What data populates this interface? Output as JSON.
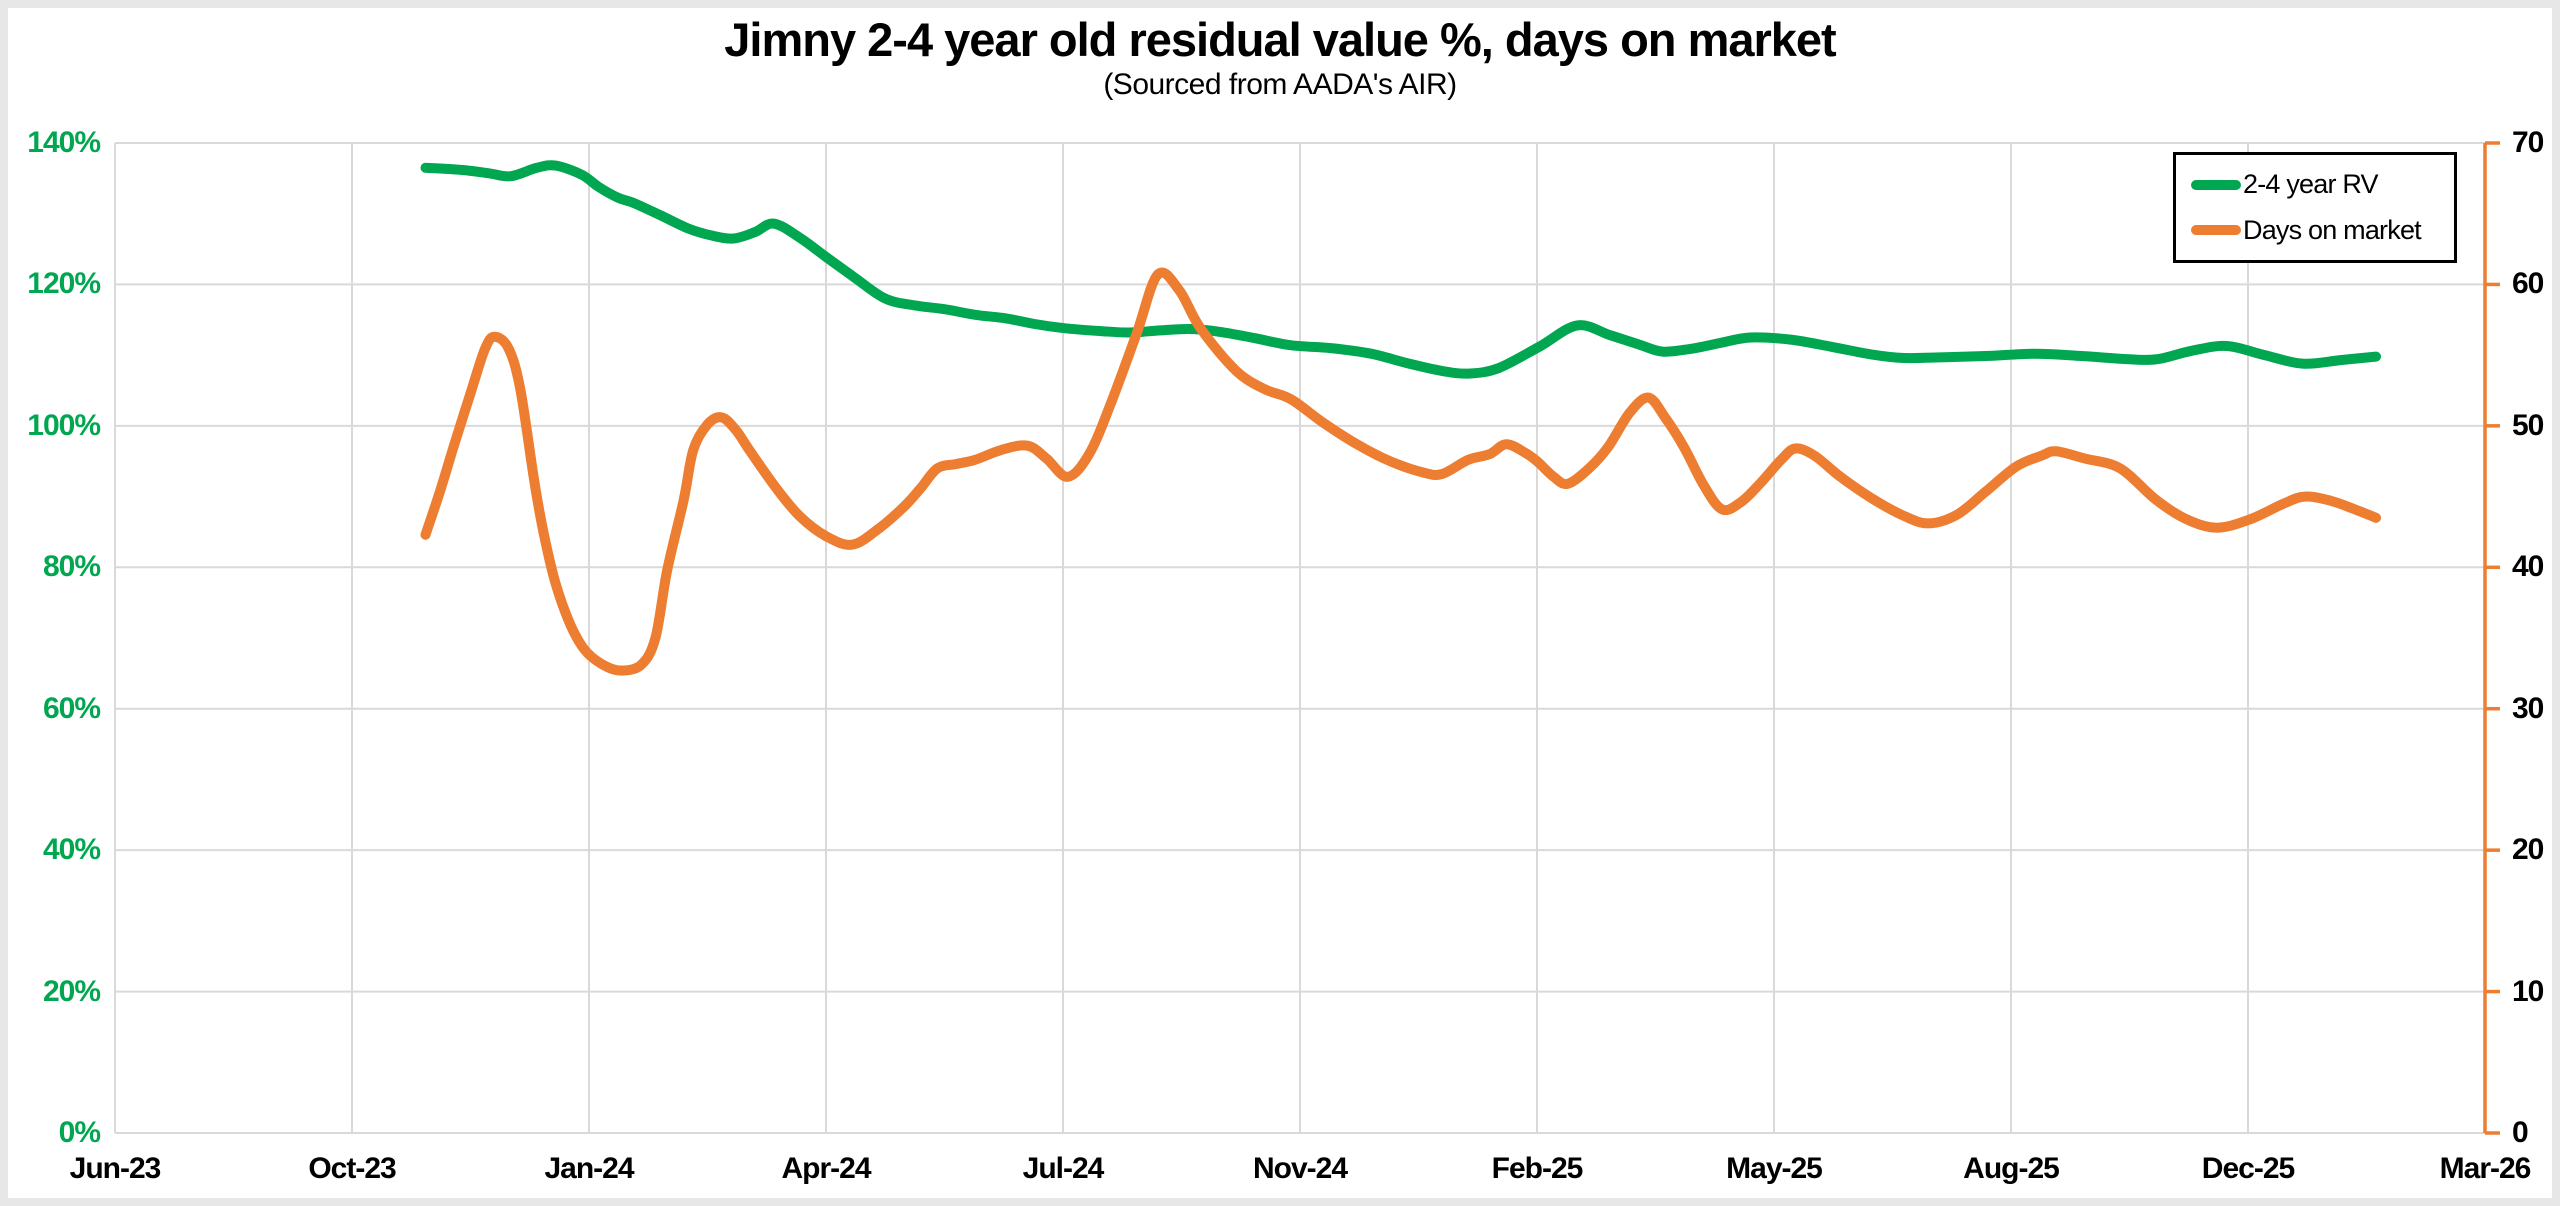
{
  "frame": {
    "color": "#e7e7e7",
    "background": "#ffffff"
  },
  "chart_data": {
    "type": "line",
    "title": "Jimny 2-4 year old residual value %, days on market",
    "subtitle": "(Sourced from AADA's AIR)",
    "grid": {
      "show": true,
      "color": "#d9d9d9"
    },
    "x_axis": {
      "tick_labels": [
        "Jun-23",
        "Oct-23",
        "Jan-24",
        "Apr-24",
        "Jul-24",
        "Nov-24",
        "Feb-25",
        "May-25",
        "Aug-25",
        "Dec-25",
        "Mar-26"
      ],
      "ticks_evenly_spaced": true,
      "label_color": "#000000"
    },
    "y_axis_left": {
      "min": 0,
      "max": 140,
      "step": 20,
      "unit": "%",
      "tick_labels": [
        "0%",
        "20%",
        "40%",
        "60%",
        "80%",
        "100%",
        "120%",
        "140%"
      ],
      "label_color": "#00a650"
    },
    "y_axis_right": {
      "min": 0,
      "max": 70,
      "step": 10,
      "tick_labels": [
        "0",
        "10",
        "20",
        "30",
        "40",
        "50",
        "60",
        "70"
      ],
      "label_color": "#000000",
      "axis_line_color": "#ed7d31"
    },
    "legend": {
      "position": "top-right",
      "border_color": "#000000",
      "background": "#ffffff"
    },
    "x_units_note": "point x = axis tick index 0-10 (0 = Jun-23 tick, 10 = Mar-26 tick)",
    "series": [
      {
        "name": "2-4 year RV",
        "axis": "left",
        "unit": "%",
        "color": "#00a650",
        "points": [
          [
            1.31,
            136.5
          ],
          [
            1.46,
            136.2
          ],
          [
            1.58,
            135.7
          ],
          [
            1.67,
            135.3
          ],
          [
            1.78,
            136.5
          ],
          [
            1.86,
            136.8
          ],
          [
            1.97,
            135.5
          ],
          [
            2.04,
            133.8
          ],
          [
            2.12,
            132.3
          ],
          [
            2.19,
            131.5
          ],
          [
            2.3,
            129.8
          ],
          [
            2.42,
            127.9
          ],
          [
            2.52,
            126.9
          ],
          [
            2.61,
            126.5
          ],
          [
            2.7,
            127.4
          ],
          [
            2.78,
            128.6
          ],
          [
            2.89,
            126.6
          ],
          [
            3.0,
            123.9
          ],
          [
            3.12,
            121.0
          ],
          [
            3.25,
            118.0
          ],
          [
            3.38,
            117.0
          ],
          [
            3.5,
            116.5
          ],
          [
            3.63,
            115.7
          ],
          [
            3.76,
            115.2
          ],
          [
            3.88,
            114.4
          ],
          [
            4.01,
            113.8
          ],
          [
            4.16,
            113.4
          ],
          [
            4.28,
            113.2
          ],
          [
            4.41,
            113.5
          ],
          [
            4.54,
            113.7
          ],
          [
            4.66,
            113.3
          ],
          [
            4.81,
            112.4
          ],
          [
            4.96,
            111.4
          ],
          [
            5.13,
            111.0
          ],
          [
            5.3,
            110.2
          ],
          [
            5.46,
            108.8
          ],
          [
            5.61,
            107.7
          ],
          [
            5.72,
            107.4
          ],
          [
            5.84,
            108.2
          ],
          [
            6.01,
            111.2
          ],
          [
            6.17,
            114.2
          ],
          [
            6.31,
            112.8
          ],
          [
            6.43,
            111.5
          ],
          [
            6.53,
            110.5
          ],
          [
            6.65,
            110.9
          ],
          [
            6.77,
            111.7
          ],
          [
            6.9,
            112.5
          ],
          [
            7.07,
            112.2
          ],
          [
            7.24,
            111.2
          ],
          [
            7.41,
            110.1
          ],
          [
            7.55,
            109.6
          ],
          [
            7.72,
            109.7
          ],
          [
            7.91,
            109.9
          ],
          [
            8.1,
            110.2
          ],
          [
            8.29,
            109.9
          ],
          [
            8.46,
            109.5
          ],
          [
            8.61,
            109.4
          ],
          [
            8.76,
            110.6
          ],
          [
            8.91,
            111.3
          ],
          [
            9.07,
            110.0
          ],
          [
            9.23,
            108.8
          ],
          [
            9.39,
            109.3
          ],
          [
            9.54,
            109.8
          ]
        ]
      },
      {
        "name": "Days on market",
        "axis": "right",
        "unit": "days",
        "color": "#ed7d31",
        "points": [
          [
            1.31,
            42.3
          ],
          [
            1.37,
            45.3
          ],
          [
            1.43,
            48.6
          ],
          [
            1.5,
            52.3
          ],
          [
            1.56,
            55.4
          ],
          [
            1.6,
            56.3
          ],
          [
            1.66,
            55.5
          ],
          [
            1.71,
            52.6
          ],
          [
            1.77,
            46.0
          ],
          [
            1.81,
            42.3
          ],
          [
            1.86,
            38.8
          ],
          [
            1.92,
            36.0
          ],
          [
            1.98,
            34.2
          ],
          [
            2.05,
            33.2
          ],
          [
            2.13,
            32.7
          ],
          [
            2.22,
            33.1
          ],
          [
            2.28,
            35.0
          ],
          [
            2.33,
            39.8
          ],
          [
            2.4,
            44.8
          ],
          [
            2.44,
            48.3
          ],
          [
            2.5,
            50.1
          ],
          [
            2.56,
            50.6
          ],
          [
            2.62,
            49.7
          ],
          [
            2.68,
            48.2
          ],
          [
            2.79,
            45.6
          ],
          [
            2.89,
            43.6
          ],
          [
            3.0,
            42.2
          ],
          [
            3.11,
            41.6
          ],
          [
            3.22,
            42.7
          ],
          [
            3.33,
            44.3
          ],
          [
            3.4,
            45.6
          ],
          [
            3.47,
            47.0
          ],
          [
            3.55,
            47.3
          ],
          [
            3.63,
            47.6
          ],
          [
            3.74,
            48.3
          ],
          [
            3.85,
            48.6
          ],
          [
            3.93,
            47.7
          ],
          [
            4.02,
            46.4
          ],
          [
            4.11,
            48.0
          ],
          [
            4.2,
            51.5
          ],
          [
            4.31,
            56.5
          ],
          [
            4.4,
            60.7
          ],
          [
            4.49,
            59.6
          ],
          [
            4.58,
            56.9
          ],
          [
            4.73,
            53.9
          ],
          [
            4.85,
            52.6
          ],
          [
            4.96,
            51.9
          ],
          [
            5.1,
            50.2
          ],
          [
            5.24,
            48.7
          ],
          [
            5.38,
            47.5
          ],
          [
            5.52,
            46.7
          ],
          [
            5.6,
            46.6
          ],
          [
            5.71,
            47.6
          ],
          [
            5.8,
            48.0
          ],
          [
            5.87,
            48.7
          ],
          [
            5.95,
            48.1
          ],
          [
            6.0,
            47.5
          ],
          [
            6.07,
            46.4
          ],
          [
            6.13,
            45.9
          ],
          [
            6.22,
            47.0
          ],
          [
            6.3,
            48.5
          ],
          [
            6.39,
            50.9
          ],
          [
            6.47,
            52.0
          ],
          [
            6.54,
            50.6
          ],
          [
            6.62,
            48.5
          ],
          [
            6.7,
            45.9
          ],
          [
            6.78,
            44.1
          ],
          [
            6.86,
            44.6
          ],
          [
            6.94,
            45.9
          ],
          [
            7.03,
            47.6
          ],
          [
            7.09,
            48.4
          ],
          [
            7.17,
            47.9
          ],
          [
            7.28,
            46.4
          ],
          [
            7.41,
            44.9
          ],
          [
            7.54,
            43.7
          ],
          [
            7.65,
            43.1
          ],
          [
            7.77,
            43.7
          ],
          [
            7.89,
            45.3
          ],
          [
            8.02,
            47.1
          ],
          [
            8.13,
            47.9
          ],
          [
            8.19,
            48.2
          ],
          [
            8.31,
            47.7
          ],
          [
            8.46,
            47.0
          ],
          [
            8.61,
            44.8
          ],
          [
            8.74,
            43.4
          ],
          [
            8.87,
            42.8
          ],
          [
            9.01,
            43.4
          ],
          [
            9.15,
            44.5
          ],
          [
            9.24,
            45.0
          ],
          [
            9.35,
            44.7
          ],
          [
            9.45,
            44.1
          ],
          [
            9.54,
            43.5
          ]
        ]
      }
    ]
  }
}
